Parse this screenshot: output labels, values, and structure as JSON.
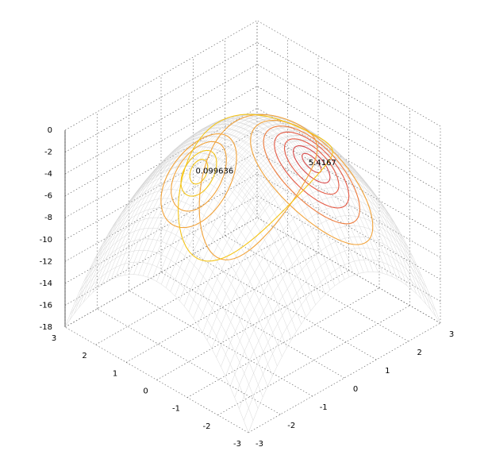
{
  "chart_data": {
    "type": "surface-contour",
    "title": "",
    "xlabel": "",
    "ylabel": "",
    "zlabel": "",
    "xlim": [
      -3,
      3
    ],
    "ylim": [
      -3,
      3
    ],
    "zlim": [
      -18,
      0
    ],
    "x_ticks": [
      "-3",
      "-2",
      "-1",
      "0",
      "1",
      "2",
      "3"
    ],
    "y_ticks": [
      "3",
      "2",
      "1",
      "0",
      "-1",
      "-2",
      "-3"
    ],
    "z_ticks": [
      "0",
      "-2",
      "-4",
      "-6",
      "-8",
      "-10",
      "-12",
      "-14",
      "-16",
      "-18"
    ],
    "surface": "z = -(x^2 + y^2)",
    "grid": true,
    "annotations": [
      {
        "text": "5.4167",
        "x": 0.6,
        "y": -1.3
      },
      {
        "text": "0.099636",
        "x": -1.4,
        "y": 0.3
      }
    ],
    "contour_colors": [
      "#f5c518",
      "#f2a33a",
      "#ee7c3e",
      "#e55a45",
      "#d94a4a"
    ],
    "mesh_color": "#d4d4d4"
  }
}
